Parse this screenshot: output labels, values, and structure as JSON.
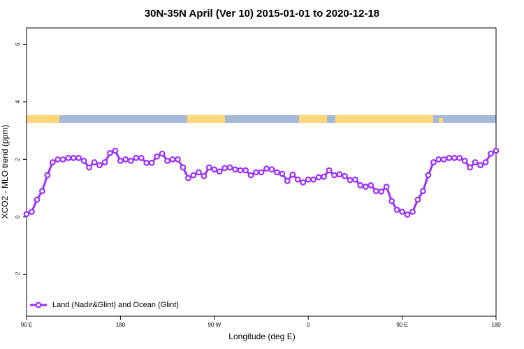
{
  "chart_data": {
    "type": "line",
    "title": "30N-35N April (Ver 10)   2015-01-01 to 2020-12-18",
    "x_label": "Longitude (deg E)",
    "y_label": "XCO2 - MLO trend (ppm)",
    "x": [
      90,
      95,
      100,
      105,
      110,
      115,
      120,
      125,
      130,
      135,
      140,
      145,
      150,
      155,
      160,
      165,
      170,
      175,
      180,
      185,
      190,
      195,
      200,
      205,
      210,
      215,
      220,
      225,
      230,
      235,
      240,
      245,
      250,
      255,
      260,
      265,
      270,
      275,
      280,
      285,
      290,
      295,
      300,
      305,
      310,
      315,
      320,
      325,
      330,
      335,
      340,
      345,
      350,
      355,
      360,
      365,
      370,
      375,
      380,
      385,
      390,
      395,
      400,
      405,
      410,
      415,
      420,
      425,
      430,
      435,
      440,
      445,
      450,
      455,
      460,
      465,
      470,
      475,
      480,
      485,
      490,
      495,
      500,
      505,
      510,
      515,
      520,
      525,
      530,
      535,
      540
    ],
    "series": [
      {
        "name": "Land (Nadir&Glint) and Ocean (Glint)",
        "color": "#9b30ff",
        "values": [
          0.1,
          0.18,
          0.6,
          0.9,
          1.45,
          1.9,
          2.0,
          2.0,
          2.05,
          2.05,
          2.05,
          1.95,
          1.72,
          1.9,
          1.8,
          1.9,
          2.22,
          2.3,
          1.95,
          2.0,
          1.95,
          2.05,
          2.05,
          1.88,
          1.88,
          2.1,
          2.2,
          1.95,
          2.0,
          2.0,
          1.72,
          1.35,
          1.45,
          1.55,
          1.42,
          1.72,
          1.65,
          1.58,
          1.7,
          1.72,
          1.65,
          1.62,
          1.62,
          1.45,
          1.55,
          1.55,
          1.68,
          1.65,
          1.55,
          1.5,
          1.25,
          1.47,
          1.3,
          1.2,
          1.3,
          1.3,
          1.38,
          1.4,
          1.62,
          1.45,
          1.48,
          1.42,
          1.28,
          1.3,
          1.1,
          1.05,
          1.1,
          0.9,
          0.88,
          1.05,
          0.55,
          0.25,
          0.18,
          0.08,
          0.18,
          0.6,
          0.9,
          1.45,
          1.9,
          2.0,
          2.0,
          2.05,
          2.05,
          2.05,
          1.95,
          1.72,
          1.9,
          1.8,
          1.9,
          2.2,
          2.3
        ]
      }
    ],
    "xlim": [
      90,
      540
    ],
    "xticks": [
      {
        "value": 90,
        "label": "90 E"
      },
      180,
      {
        "value": 270,
        "label": "90 W"
      },
      {
        "value": 360,
        "label": "0"
      },
      {
        "value": 450,
        "label": "90 E"
      },
      {
        "value": 540,
        "label": "180"
      }
    ],
    "ylim": [
      -3.45,
      6.57
    ],
    "yticks": [
      -2,
      0,
      2,
      4,
      6
    ],
    "legend": "bottom left"
  }
}
